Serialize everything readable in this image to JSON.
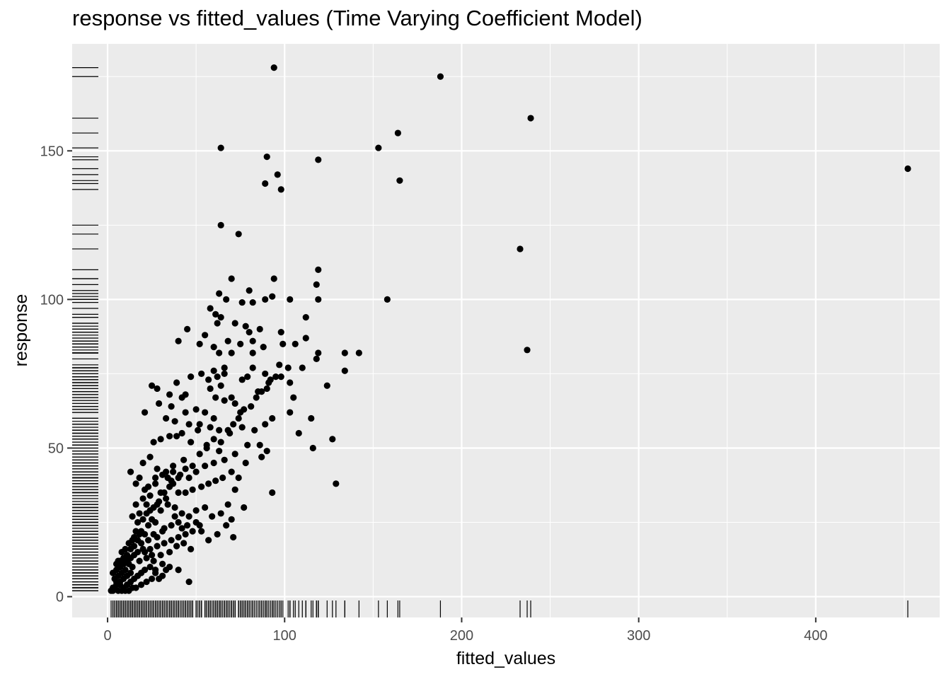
{
  "chart_data": {
    "type": "scatter",
    "title": "response vs fitted_values (Time Varying Coefficient Model)",
    "xlabel": "fitted_values",
    "ylabel": "response",
    "xlim": [
      -20,
      470
    ],
    "ylim": [
      -7,
      186
    ],
    "x_ticks": [
      0,
      100,
      200,
      300,
      400
    ],
    "y_ticks": [
      0,
      50,
      100,
      150
    ],
    "x_tick_labels": [
      "0",
      "100",
      "200",
      "300",
      "400"
    ],
    "y_tick_labels": [
      "0",
      "50",
      "100",
      "150"
    ],
    "grid": true,
    "rug": [
      "bottom",
      "left"
    ],
    "colors": {
      "panel": "#ebebeb",
      "grid": "#ffffff",
      "point": "#000000",
      "tick": "#4d4d4d"
    },
    "points": [
      [
        94,
        178
      ],
      [
        188,
        175
      ],
      [
        239,
        161
      ],
      [
        164,
        156
      ],
      [
        153,
        151
      ],
      [
        64,
        151
      ],
      [
        90,
        148
      ],
      [
        119,
        147
      ],
      [
        452,
        144
      ],
      [
        96,
        142
      ],
      [
        165,
        140
      ],
      [
        89,
        139
      ],
      [
        98,
        137
      ],
      [
        64,
        125
      ],
      [
        74,
        122
      ],
      [
        233,
        117
      ],
      [
        119,
        110
      ],
      [
        94,
        107
      ],
      [
        70,
        107
      ],
      [
        118,
        105
      ],
      [
        80,
        103
      ],
      [
        63,
        102
      ],
      [
        93,
        101
      ],
      [
        89,
        100
      ],
      [
        103,
        100
      ],
      [
        67,
        100
      ],
      [
        119,
        100
      ],
      [
        158,
        100
      ],
      [
        76,
        99
      ],
      [
        82,
        99
      ],
      [
        58,
        97
      ],
      [
        61,
        95
      ],
      [
        64,
        94
      ],
      [
        112,
        94
      ],
      [
        72,
        92
      ],
      [
        62,
        92
      ],
      [
        78,
        91
      ],
      [
        86,
        90
      ],
      [
        98,
        89
      ],
      [
        45,
        90
      ],
      [
        80,
        89
      ],
      [
        55,
        88
      ],
      [
        112,
        87
      ],
      [
        82,
        86
      ],
      [
        40,
        86
      ],
      [
        75,
        85
      ],
      [
        99,
        85
      ],
      [
        106,
        85
      ],
      [
        88,
        84
      ],
      [
        60,
        84
      ],
      [
        68,
        86
      ],
      [
        52,
        85
      ],
      [
        237,
        83
      ],
      [
        142,
        82
      ],
      [
        134,
        82
      ],
      [
        119,
        82
      ],
      [
        63,
        82
      ],
      [
        70,
        82
      ],
      [
        82,
        82
      ],
      [
        118,
        80
      ],
      [
        97,
        78
      ],
      [
        102,
        77
      ],
      [
        110,
        77
      ],
      [
        82,
        77
      ],
      [
        66,
        77
      ],
      [
        76,
        73
      ],
      [
        92,
        73
      ],
      [
        89,
        75
      ],
      [
        66,
        75
      ],
      [
        62,
        74
      ],
      [
        134,
        76
      ],
      [
        98,
        74
      ],
      [
        53,
        75
      ],
      [
        57,
        73
      ],
      [
        47,
        74
      ],
      [
        60,
        76
      ],
      [
        79,
        74
      ],
      [
        39,
        72
      ],
      [
        25,
        71
      ],
      [
        28,
        70
      ],
      [
        35,
        68
      ],
      [
        44,
        68
      ],
      [
        58,
        70
      ],
      [
        64,
        71
      ],
      [
        61,
        67
      ],
      [
        66,
        66
      ],
      [
        72,
        65
      ],
      [
        70,
        67
      ],
      [
        85,
        69
      ],
      [
        90,
        70
      ],
      [
        103,
        72
      ],
      [
        124,
        71
      ],
      [
        42,
        67
      ],
      [
        50,
        63
      ],
      [
        55,
        62
      ],
      [
        60,
        60
      ],
      [
        44,
        62
      ],
      [
        36,
        64
      ],
      [
        29,
        65
      ],
      [
        33,
        60
      ],
      [
        38,
        59
      ],
      [
        46,
        58
      ],
      [
        52,
        58
      ],
      [
        58,
        57
      ],
      [
        63,
        56
      ],
      [
        69,
        55
      ],
      [
        76,
        57
      ],
      [
        83,
        56
      ],
      [
        93,
        60
      ],
      [
        89,
        58
      ],
      [
        75,
        62
      ],
      [
        51,
        56
      ],
      [
        42,
        55
      ],
      [
        35,
        54
      ],
      [
        30,
        53
      ],
      [
        26,
        52
      ],
      [
        21,
        62
      ],
      [
        39,
        54
      ],
      [
        47,
        52
      ],
      [
        56,
        51
      ],
      [
        63,
        49
      ],
      [
        72,
        48
      ],
      [
        79,
        51
      ],
      [
        86,
        51
      ],
      [
        90,
        49
      ],
      [
        108,
        55
      ],
      [
        115,
        60
      ],
      [
        116,
        50
      ],
      [
        127,
        53
      ],
      [
        105,
        67
      ],
      [
        103,
        62
      ],
      [
        20,
        45
      ],
      [
        24,
        47
      ],
      [
        28,
        43
      ],
      [
        33,
        42
      ],
      [
        37,
        44
      ],
      [
        41,
        41
      ],
      [
        46,
        40
      ],
      [
        50,
        42
      ],
      [
        55,
        44
      ],
      [
        60,
        45
      ],
      [
        66,
        46
      ],
      [
        70,
        42
      ],
      [
        74,
        40
      ],
      [
        78,
        45
      ],
      [
        87,
        47
      ],
      [
        65,
        40
      ],
      [
        61,
        39
      ],
      [
        57,
        38
      ],
      [
        53,
        37
      ],
      [
        48,
        36
      ],
      [
        44,
        35
      ],
      [
        40,
        35
      ],
      [
        35,
        37
      ],
      [
        30,
        35
      ],
      [
        27,
        38
      ],
      [
        24,
        34
      ],
      [
        21,
        36
      ],
      [
        18,
        40
      ],
      [
        16,
        38
      ],
      [
        13,
        42
      ],
      [
        22,
        31
      ],
      [
        26,
        30
      ],
      [
        30,
        29
      ],
      [
        34,
        31
      ],
      [
        38,
        30
      ],
      [
        42,
        28
      ],
      [
        46,
        27
      ],
      [
        50,
        29
      ],
      [
        55,
        30
      ],
      [
        59,
        27
      ],
      [
        64,
        28
      ],
      [
        68,
        31
      ],
      [
        72,
        36
      ],
      [
        77,
        30
      ],
      [
        70,
        26
      ],
      [
        67,
        24
      ],
      [
        71,
        20
      ],
      [
        50,
        25
      ],
      [
        53,
        22
      ],
      [
        48,
        22
      ],
      [
        44,
        21
      ],
      [
        40,
        20
      ],
      [
        36,
        19
      ],
      [
        32,
        18
      ],
      [
        28,
        17
      ],
      [
        24,
        16
      ],
      [
        20,
        16
      ],
      [
        17,
        15
      ],
      [
        15,
        14
      ],
      [
        13,
        13
      ],
      [
        11,
        12
      ],
      [
        9,
        11
      ],
      [
        7,
        10
      ],
      [
        5,
        9
      ],
      [
        3,
        8
      ],
      [
        14,
        10
      ],
      [
        18,
        12
      ],
      [
        22,
        13
      ],
      [
        26,
        12
      ],
      [
        30,
        14
      ],
      [
        35,
        15
      ],
      [
        39,
        17
      ],
      [
        43,
        18
      ],
      [
        47,
        16
      ],
      [
        52,
        24
      ],
      [
        57,
        19
      ],
      [
        62,
        21
      ],
      [
        93,
        35
      ],
      [
        129,
        38
      ],
      [
        15,
        20
      ],
      [
        19,
        22
      ],
      [
        23,
        24
      ],
      [
        27,
        25
      ],
      [
        31,
        22
      ],
      [
        17,
        25
      ],
      [
        14,
        27
      ],
      [
        22,
        28
      ],
      [
        25,
        26
      ],
      [
        29,
        32
      ],
      [
        33,
        33
      ],
      [
        37,
        38
      ],
      [
        20,
        33
      ],
      [
        16,
        31
      ],
      [
        12,
        11
      ],
      [
        10,
        9
      ],
      [
        8,
        8
      ],
      [
        6,
        7
      ],
      [
        4,
        6
      ],
      [
        5,
        5
      ],
      [
        7,
        4
      ],
      [
        9,
        3
      ],
      [
        11,
        4
      ],
      [
        13,
        5
      ],
      [
        15,
        6
      ],
      [
        17,
        7
      ],
      [
        19,
        8
      ],
      [
        21,
        9
      ],
      [
        24,
        10
      ],
      [
        27,
        8
      ],
      [
        29,
        6
      ],
      [
        31,
        7
      ],
      [
        33,
        9
      ],
      [
        25,
        6
      ],
      [
        22,
        5
      ],
      [
        19,
        4
      ],
      [
        16,
        3
      ],
      [
        14,
        3
      ],
      [
        12,
        2
      ],
      [
        10,
        2
      ],
      [
        8,
        2
      ],
      [
        6,
        2
      ],
      [
        4,
        3
      ],
      [
        3,
        2
      ],
      [
        2,
        2
      ],
      [
        5,
        11
      ],
      [
        7,
        12
      ],
      [
        9,
        13
      ],
      [
        11,
        14
      ],
      [
        13,
        16
      ],
      [
        15,
        17
      ],
      [
        17,
        19
      ],
      [
        19,
        18
      ],
      [
        21,
        21
      ],
      [
        23,
        19
      ],
      [
        26,
        21
      ],
      [
        28,
        20
      ],
      [
        32,
        23
      ],
      [
        36,
        24
      ],
      [
        40,
        25
      ],
      [
        45,
        24
      ],
      [
        42,
        23
      ],
      [
        38,
        27
      ],
      [
        18,
        28
      ],
      [
        23,
        37
      ],
      [
        27,
        40
      ],
      [
        31,
        41
      ],
      [
        34,
        40
      ],
      [
        37,
        42
      ],
      [
        43,
        46
      ],
      [
        46,
        5
      ],
      [
        40,
        9
      ],
      [
        35,
        10
      ],
      [
        31,
        11
      ],
      [
        27,
        9
      ],
      [
        25,
        14
      ],
      [
        21,
        15
      ],
      [
        13,
        8
      ],
      [
        11,
        7
      ],
      [
        9,
        6
      ],
      [
        7,
        5
      ],
      [
        5,
        4
      ],
      [
        3,
        3
      ],
      [
        6,
        12
      ],
      [
        10,
        16
      ],
      [
        14,
        19
      ],
      [
        18,
        21
      ],
      [
        8,
        15
      ],
      [
        12,
        18
      ],
      [
        16,
        22
      ],
      [
        20,
        26
      ],
      [
        24,
        29
      ],
      [
        28,
        31
      ],
      [
        32,
        35
      ],
      [
        36,
        39
      ],
      [
        40,
        40
      ],
      [
        44,
        43
      ],
      [
        48,
        44
      ],
      [
        52,
        48
      ],
      [
        56,
        50
      ],
      [
        60,
        53
      ],
      [
        64,
        52
      ],
      [
        68,
        56
      ],
      [
        71,
        58
      ],
      [
        74,
        60
      ],
      [
        77,
        63
      ],
      [
        81,
        64
      ],
      [
        84,
        67
      ],
      [
        87,
        69
      ],
      [
        91,
        72
      ],
      [
        95,
        74
      ]
    ]
  }
}
